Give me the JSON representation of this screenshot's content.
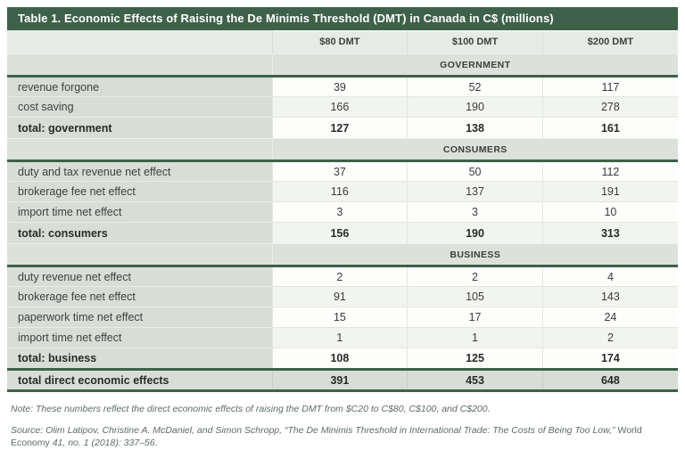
{
  "table": {
    "title": "Table 1. Economic Effects of Raising the De Minimis Threshold (DMT) in Canada in C$ (millions)",
    "columns": [
      "$80 DMT",
      "$100 DMT",
      "$200 DMT"
    ],
    "sections": [
      {
        "name": "GOVERNMENT",
        "rows": [
          {
            "label": "revenue forgone",
            "values": [
              "39",
              "52",
              "117"
            ]
          },
          {
            "label": "cost saving",
            "values": [
              "166",
              "190",
              "278"
            ]
          },
          {
            "label": "total: government",
            "values": [
              "127",
              "138",
              "161"
            ]
          }
        ]
      },
      {
        "name": "CONSUMERS",
        "rows": [
          {
            "label": "duty and tax revenue net effect",
            "values": [
              "37",
              "50",
              "112"
            ]
          },
          {
            "label": "brokerage fee net effect",
            "values": [
              "116",
              "137",
              "191"
            ]
          },
          {
            "label": "import time net effect",
            "values": [
              "3",
              "3",
              "10"
            ]
          },
          {
            "label": "total: consumers",
            "values": [
              "156",
              "190",
              "313"
            ]
          }
        ]
      },
      {
        "name": "BUSINESS",
        "rows": [
          {
            "label": "duty revenue net effect",
            "values": [
              "2",
              "2",
              "4"
            ]
          },
          {
            "label": "brokerage fee net effect",
            "values": [
              "91",
              "105",
              "143"
            ]
          },
          {
            "label": "paperwork time net effect",
            "values": [
              "15",
              "17",
              "24"
            ]
          },
          {
            "label": "import time net effect",
            "values": [
              "1",
              "1",
              "2"
            ]
          },
          {
            "label": "total: business",
            "values": [
              "108",
              "125",
              "174"
            ]
          }
        ]
      }
    ],
    "grand_total": {
      "label": "total direct economic effects",
      "values": [
        "391",
        "453",
        "648"
      ]
    }
  },
  "footnotes": {
    "note": "Note: These numbers reflect the direct economic effects of raising the DMT from $C20 to C$80, C$100, and C$200.",
    "source_prefix": "Source: Olim Latipov, Christine A. McDaniel, and Simon Schropp, “The De Minimis Threshold in International Trade: The Costs of Being Too Low,” ",
    "source_journal": "World Economy",
    "source_suffix": " 41, no. 1 (2018): 337–56."
  },
  "colors": {
    "title_bar_green": "#3e6149",
    "section_band_bg": "#dce2da",
    "label_column_bg": "#d8ded6",
    "header_row_bg": "#e7ebe5",
    "stripe_light": "#f2f4f0",
    "stripe_white": "#fdfdfc"
  }
}
